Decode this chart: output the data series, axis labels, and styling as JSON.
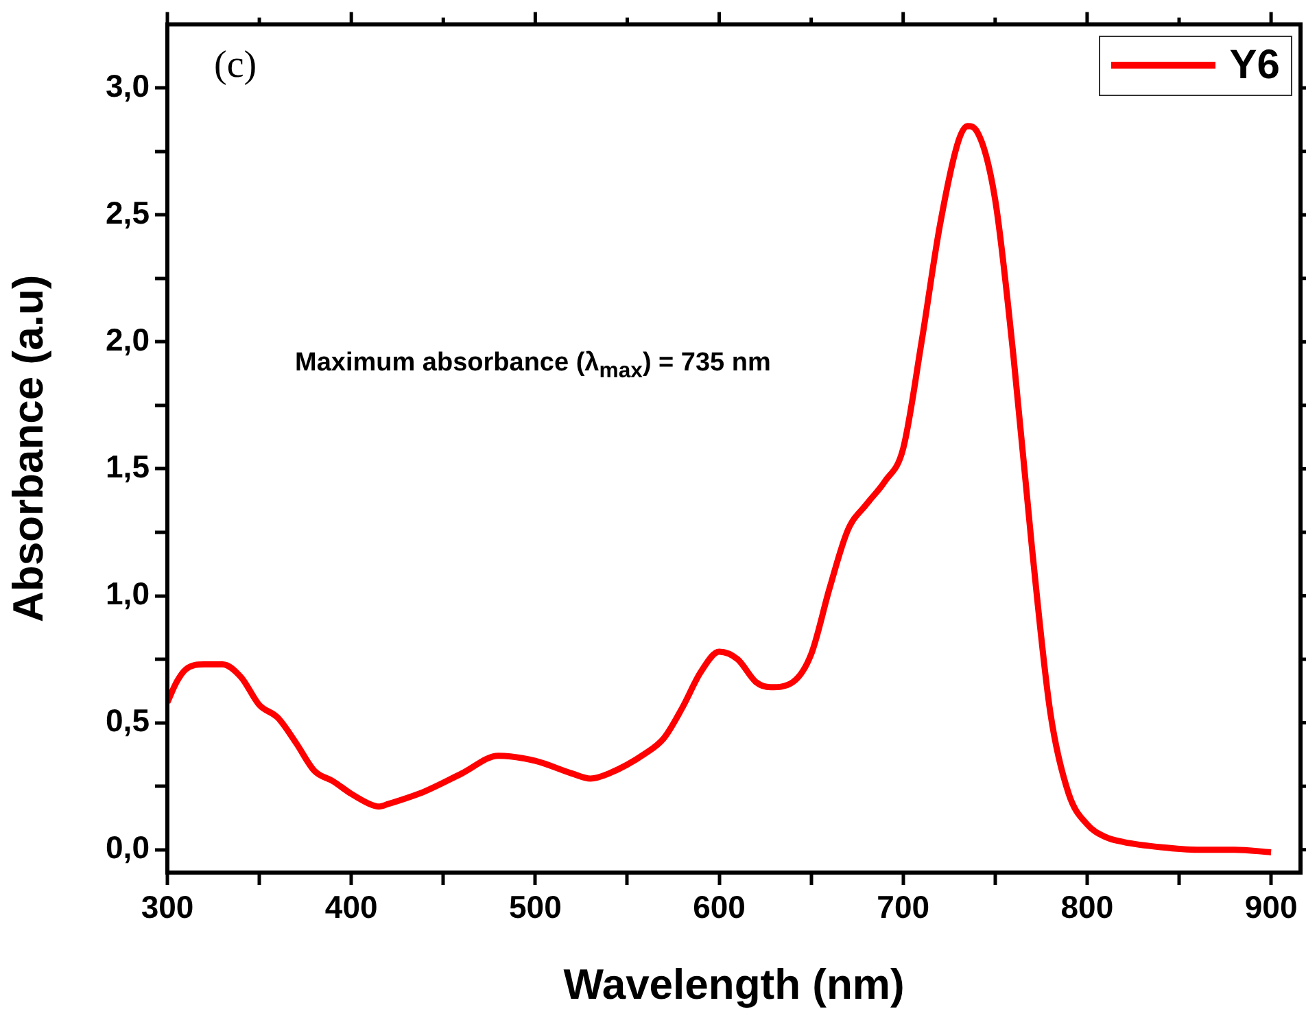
{
  "chart_data": {
    "type": "line",
    "xlabel": "Wavelength (nm)",
    "ylabel": "Absorbance (a.u)",
    "annotations": [
      "(c)",
      "Maximum absorbance (λ$_{max}$) = 735 nm"
    ],
    "xlim": [
      300,
      916
    ],
    "ylim": [
      -0.09,
      3.25
    ],
    "xticks": [
      300,
      {
        "value": 350,
        "label": null
      },
      400,
      {
        "value": 450,
        "label": null
      },
      500,
      {
        "value": 550,
        "label": null
      },
      600,
      {
        "value": 650,
        "label": null
      },
      700,
      {
        "value": 750,
        "label": null
      },
      800,
      {
        "value": 850,
        "label": null
      },
      900
    ],
    "yticks": [
      {
        "value": 0,
        "label": "0,0"
      },
      {
        "value": 0.25,
        "label": null
      },
      {
        "value": 0.5,
        "label": "0,5"
      },
      {
        "value": 0.75,
        "label": null
      },
      {
        "value": 1,
        "label": "1,0"
      },
      {
        "value": 1.25,
        "label": null
      },
      {
        "value": 1.5,
        "label": "1,5"
      },
      {
        "value": 1.75,
        "label": null
      },
      {
        "value": 2,
        "label": "2,0"
      },
      {
        "value": 2.25,
        "label": null
      },
      {
        "value": 2.5,
        "label": "2,5"
      },
      {
        "value": 2.75,
        "label": null
      },
      {
        "value": 3,
        "label": "3,0"
      }
    ],
    "legend": "top right",
    "grid": false,
    "marker": "none",
    "line_style": "solid",
    "series": [
      {
        "name": "Y6",
        "color": "#ff0000",
        "x": [
          300,
          305,
          310,
          320,
          330,
          340,
          350,
          360,
          370,
          380,
          390,
          400,
          410,
          415,
          420,
          440,
          460,
          480,
          500,
          520,
          530,
          540,
          560,
          570,
          580,
          590,
          600,
          610,
          620,
          628,
          640,
          650,
          660,
          670,
          680,
          690,
          700,
          710,
          720,
          730,
          735,
          740,
          750,
          760,
          770,
          780,
          790,
          800,
          810,
          820,
          840,
          860,
          880,
          900
        ],
        "values": [
          0.58,
          0.66,
          0.71,
          0.73,
          0.73,
          0.68,
          0.57,
          0.52,
          0.42,
          0.31,
          0.27,
          0.22,
          0.18,
          0.17,
          0.18,
          0.23,
          0.3,
          0.37,
          0.35,
          0.3,
          0.28,
          0.3,
          0.38,
          0.44,
          0.56,
          0.7,
          0.78,
          0.75,
          0.66,
          0.64,
          0.66,
          0.77,
          1.03,
          1.26,
          1.36,
          1.45,
          1.58,
          2.0,
          2.46,
          2.79,
          2.85,
          2.83,
          2.56,
          1.94,
          1.19,
          0.54,
          0.22,
          0.1,
          0.05,
          0.03,
          0.01,
          0.0,
          0.0,
          -0.01
        ]
      }
    ]
  }
}
